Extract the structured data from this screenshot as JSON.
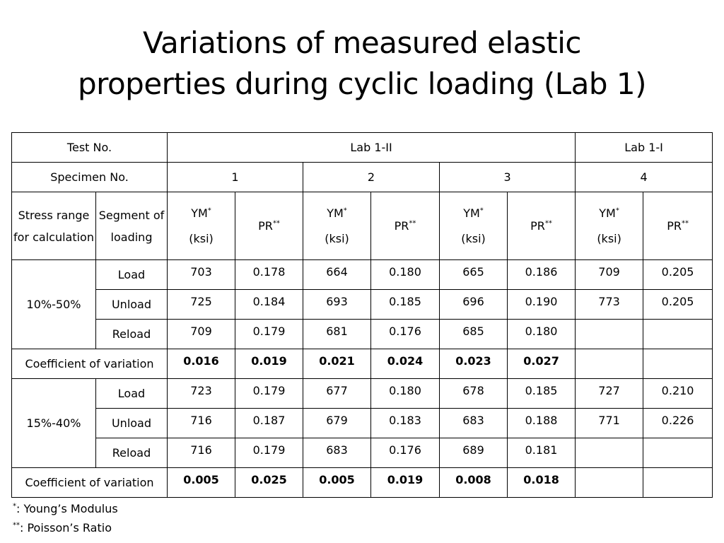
{
  "title_line1": "Variations of measured elastic",
  "title_line2": "properties during cyclic loading (Lab 1)",
  "header": {
    "test_no_label": "Test No.",
    "lab1_ii": "Lab 1-II",
    "lab1_i": "Lab 1-I",
    "specimen_no_label": "Specimen No.",
    "specimens": [
      "1",
      "2",
      "3",
      "4"
    ],
    "stress_range_label": "Stress range for calculation",
    "segment_label": "Segment of loading",
    "ym_label": "YM",
    "ym_sup": "*",
    "ym_unit": "(ksi)",
    "pr_label": "PR",
    "pr_sup": "**"
  },
  "groups": [
    {
      "range": "10%-50%",
      "rows": [
        {
          "segment": "Load",
          "values": [
            "703",
            "0.178",
            "664",
            "0.180",
            "665",
            "0.186",
            "709",
            "0.205"
          ]
        },
        {
          "segment": "Unload",
          "values": [
            "725",
            "0.184",
            "693",
            "0.185",
            "696",
            "0.190",
            "773",
            "0.205"
          ]
        },
        {
          "segment": "Reload",
          "values": [
            "709",
            "0.179",
            "681",
            "0.176",
            "685",
            "0.180",
            "",
            ""
          ]
        }
      ],
      "cov_label": "Coefficient of variation",
      "cov": [
        "0.016",
        "0.019",
        "0.021",
        "0.024",
        "0.023",
        "0.027",
        "",
        ""
      ]
    },
    {
      "range": "15%-40%",
      "rows": [
        {
          "segment": "Load",
          "values": [
            "723",
            "0.179",
            "677",
            "0.180",
            "678",
            "0.185",
            "727",
            "0.210"
          ]
        },
        {
          "segment": "Unload",
          "values": [
            "716",
            "0.187",
            "679",
            "0.183",
            "683",
            "0.188",
            "771",
            "0.226"
          ]
        },
        {
          "segment": "Reload",
          "values": [
            "716",
            "0.179",
            "683",
            "0.176",
            "689",
            "0.181",
            "",
            ""
          ]
        }
      ],
      "cov_label": "Coefficient of variation",
      "cov": [
        "0.005",
        "0.025",
        "0.005",
        "0.019",
        "0.008",
        "0.018",
        "",
        ""
      ]
    }
  ],
  "footnotes": {
    "ym_mark": "*",
    "ym_text": ": Young’s Modulus",
    "pr_mark": "**",
    "pr_text": ": Poisson’s Ratio"
  }
}
